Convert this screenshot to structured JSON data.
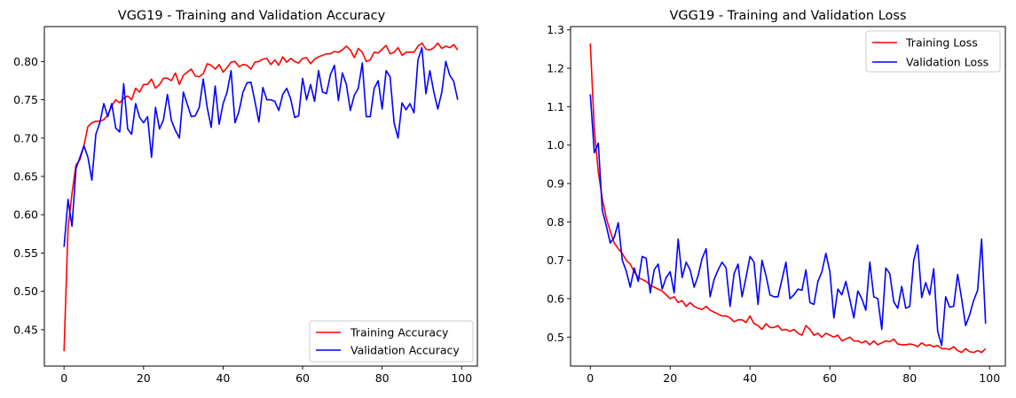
{
  "figure": {
    "background": "#ffffff"
  },
  "chart_data": [
    {
      "type": "line",
      "title": "VGG19 - Training and Validation Accuracy",
      "xlabel": "",
      "ylabel": "",
      "xlim": [
        -4.95,
        103.95
      ],
      "ylim": [
        0.4025,
        0.8455
      ],
      "xticks": [
        0,
        20,
        40,
        60,
        80,
        100
      ],
      "xtick_labels": [
        "0",
        "20",
        "40",
        "60",
        "80",
        "100"
      ],
      "yticks": [
        0.45,
        0.5,
        0.55,
        0.6,
        0.65,
        0.7,
        0.75,
        0.8
      ],
      "ytick_labels": [
        "0.45",
        "0.50",
        "0.55",
        "0.60",
        "0.65",
        "0.70",
        "0.75",
        "0.80"
      ],
      "grid": false,
      "legend_position": "lower-right",
      "series": [
        {
          "name": "Training Accuracy",
          "color": "#ff0000",
          "x": [
            0,
            1,
            2,
            3,
            4,
            5,
            6,
            7,
            8,
            9,
            10,
            11,
            12,
            13,
            14,
            15,
            16,
            17,
            18,
            19,
            20,
            21,
            22,
            23,
            24,
            25,
            26,
            27,
            28,
            29,
            30,
            31,
            32,
            33,
            34,
            35,
            36,
            37,
            38,
            39,
            40,
            41,
            42,
            43,
            44,
            45,
            46,
            47,
            48,
            49,
            50,
            51,
            52,
            53,
            54,
            55,
            56,
            57,
            58,
            59,
            60,
            61,
            62,
            63,
            64,
            65,
            66,
            67,
            68,
            69,
            70,
            71,
            72,
            73,
            74,
            75,
            76,
            77,
            78,
            79,
            80,
            81,
            82,
            83,
            84,
            85,
            86,
            87,
            88,
            89,
            90,
            91,
            92,
            93,
            94,
            95,
            96,
            97,
            98,
            99
          ],
          "values": [
            0.422,
            0.582,
            0.628,
            0.665,
            0.672,
            0.69,
            0.715,
            0.72,
            0.722,
            0.722,
            0.724,
            0.73,
            0.742,
            0.75,
            0.746,
            0.752,
            0.755,
            0.75,
            0.765,
            0.76,
            0.77,
            0.77,
            0.777,
            0.765,
            0.77,
            0.778,
            0.778,
            0.775,
            0.785,
            0.77,
            0.782,
            0.786,
            0.79,
            0.781,
            0.78,
            0.784,
            0.797,
            0.795,
            0.79,
            0.796,
            0.786,
            0.792,
            0.799,
            0.8,
            0.793,
            0.796,
            0.795,
            0.79,
            0.799,
            0.8,
            0.803,
            0.804,
            0.796,
            0.802,
            0.795,
            0.806,
            0.799,
            0.804,
            0.8,
            0.798,
            0.804,
            0.805,
            0.797,
            0.803,
            0.806,
            0.808,
            0.81,
            0.81,
            0.813,
            0.812,
            0.815,
            0.82,
            0.815,
            0.805,
            0.817,
            0.812,
            0.8,
            0.802,
            0.812,
            0.811,
            0.816,
            0.821,
            0.81,
            0.812,
            0.818,
            0.808,
            0.812,
            0.812,
            0.812,
            0.82,
            0.824,
            0.816,
            0.815,
            0.818,
            0.824,
            0.817,
            0.82,
            0.818,
            0.822,
            0.815
          ]
        },
        {
          "name": "Validation Accuracy",
          "color": "#0000ff",
          "x": [
            0,
            1,
            2,
            3,
            4,
            5,
            6,
            7,
            8,
            9,
            10,
            11,
            12,
            13,
            14,
            15,
            16,
            17,
            18,
            19,
            20,
            21,
            22,
            23,
            24,
            25,
            26,
            27,
            28,
            29,
            30,
            31,
            32,
            33,
            34,
            35,
            36,
            37,
            38,
            39,
            40,
            41,
            42,
            43,
            44,
            45,
            46,
            47,
            48,
            49,
            50,
            51,
            52,
            53,
            54,
            55,
            56,
            57,
            58,
            59,
            60,
            61,
            62,
            63,
            64,
            65,
            66,
            67,
            68,
            69,
            70,
            71,
            72,
            73,
            74,
            75,
            76,
            77,
            78,
            79,
            80,
            81,
            82,
            83,
            84,
            85,
            86,
            87,
            88,
            89,
            90,
            91,
            92,
            93,
            94,
            95,
            96,
            97,
            98,
            99
          ],
          "values": [
            0.558,
            0.62,
            0.585,
            0.66,
            0.675,
            0.69,
            0.675,
            0.645,
            0.705,
            0.72,
            0.745,
            0.728,
            0.745,
            0.713,
            0.708,
            0.771,
            0.712,
            0.705,
            0.745,
            0.727,
            0.72,
            0.728,
            0.675,
            0.74,
            0.712,
            0.724,
            0.757,
            0.723,
            0.71,
            0.7,
            0.76,
            0.744,
            0.728,
            0.729,
            0.74,
            0.777,
            0.74,
            0.714,
            0.768,
            0.718,
            0.745,
            0.76,
            0.788,
            0.72,
            0.735,
            0.76,
            0.772,
            0.773,
            0.748,
            0.721,
            0.766,
            0.75,
            0.75,
            0.748,
            0.736,
            0.757,
            0.765,
            0.751,
            0.727,
            0.729,
            0.778,
            0.75,
            0.77,
            0.748,
            0.788,
            0.76,
            0.758,
            0.783,
            0.795,
            0.749,
            0.785,
            0.77,
            0.736,
            0.756,
            0.765,
            0.798,
            0.728,
            0.728,
            0.765,
            0.775,
            0.738,
            0.788,
            0.78,
            0.72,
            0.7,
            0.746,
            0.737,
            0.745,
            0.733,
            0.802,
            0.818,
            0.758,
            0.788,
            0.76,
            0.738,
            0.76,
            0.8,
            0.782,
            0.774,
            0.75
          ]
        }
      ]
    },
    {
      "type": "line",
      "title": "VGG19 - Training and Validation Loss",
      "xlabel": "",
      "ylabel": "",
      "xlim": [
        -4.95,
        103.95
      ],
      "ylim": [
        0.4245,
        1.3085
      ],
      "xticks": [
        0,
        20,
        40,
        60,
        80,
        100
      ],
      "xtick_labels": [
        "0",
        "20",
        "40",
        "60",
        "80",
        "100"
      ],
      "yticks": [
        0.5,
        0.6,
        0.7,
        0.8,
        0.9,
        1.0,
        1.1,
        1.2,
        1.3
      ],
      "ytick_labels": [
        "0.5",
        "0.6",
        "0.7",
        "0.8",
        "0.9",
        "1.0",
        "1.1",
        "1.2",
        "1.3"
      ],
      "grid": false,
      "legend_position": "upper-right",
      "series": [
        {
          "name": "Training Loss",
          "color": "#ff0000",
          "x": [
            0,
            1,
            2,
            3,
            4,
            5,
            6,
            7,
            8,
            9,
            10,
            11,
            12,
            13,
            14,
            15,
            16,
            17,
            18,
            19,
            20,
            21,
            22,
            23,
            24,
            25,
            26,
            27,
            28,
            29,
            30,
            31,
            32,
            33,
            34,
            35,
            36,
            37,
            38,
            39,
            40,
            41,
            42,
            43,
            44,
            45,
            46,
            47,
            48,
            49,
            50,
            51,
            52,
            53,
            54,
            55,
            56,
            57,
            58,
            59,
            60,
            61,
            62,
            63,
            64,
            65,
            66,
            67,
            68,
            69,
            70,
            71,
            72,
            73,
            74,
            75,
            76,
            77,
            78,
            79,
            80,
            81,
            82,
            83,
            84,
            85,
            86,
            87,
            88,
            89,
            90,
            91,
            92,
            93,
            94,
            95,
            96,
            97,
            98,
            99
          ],
          "values": [
            1.265,
            1.04,
            0.93,
            0.86,
            0.81,
            0.775,
            0.745,
            0.73,
            0.718,
            0.7,
            0.69,
            0.67,
            0.655,
            0.65,
            0.645,
            0.635,
            0.63,
            0.625,
            0.62,
            0.61,
            0.6,
            0.605,
            0.59,
            0.595,
            0.58,
            0.59,
            0.58,
            0.575,
            0.572,
            0.58,
            0.57,
            0.565,
            0.56,
            0.555,
            0.555,
            0.55,
            0.54,
            0.545,
            0.545,
            0.538,
            0.555,
            0.535,
            0.53,
            0.52,
            0.535,
            0.525,
            0.525,
            0.53,
            0.518,
            0.52,
            0.515,
            0.52,
            0.51,
            0.505,
            0.53,
            0.52,
            0.505,
            0.51,
            0.5,
            0.51,
            0.505,
            0.5,
            0.505,
            0.49,
            0.495,
            0.5,
            0.49,
            0.49,
            0.485,
            0.49,
            0.48,
            0.49,
            0.48,
            0.485,
            0.49,
            0.488,
            0.495,
            0.482,
            0.48,
            0.48,
            0.482,
            0.48,
            0.475,
            0.485,
            0.478,
            0.48,
            0.475,
            0.478,
            0.47,
            0.47,
            0.468,
            0.475,
            0.465,
            0.46,
            0.47,
            0.462,
            0.46,
            0.465,
            0.46,
            0.47
          ]
        },
        {
          "name": "Validation Loss",
          "color": "#0000ff",
          "x": [
            0,
            1,
            2,
            3,
            4,
            5,
            6,
            7,
            8,
            9,
            10,
            11,
            12,
            13,
            14,
            15,
            16,
            17,
            18,
            19,
            20,
            21,
            22,
            23,
            24,
            25,
            26,
            27,
            28,
            29,
            30,
            31,
            32,
            33,
            34,
            35,
            36,
            37,
            38,
            39,
            40,
            41,
            42,
            43,
            44,
            45,
            46,
            47,
            48,
            49,
            50,
            51,
            52,
            53,
            54,
            55,
            56,
            57,
            58,
            59,
            60,
            61,
            62,
            63,
            64,
            65,
            66,
            67,
            68,
            69,
            70,
            71,
            72,
            73,
            74,
            75,
            76,
            77,
            78,
            79,
            80,
            81,
            82,
            83,
            84,
            85,
            86,
            87,
            88,
            89,
            90,
            91,
            92,
            93,
            94,
            95,
            96,
            97,
            98,
            99
          ],
          "values": [
            1.132,
            0.98,
            1.005,
            0.83,
            0.79,
            0.745,
            0.76,
            0.798,
            0.7,
            0.672,
            0.63,
            0.68,
            0.645,
            0.71,
            0.705,
            0.615,
            0.675,
            0.69,
            0.625,
            0.655,
            0.67,
            0.615,
            0.755,
            0.655,
            0.695,
            0.675,
            0.63,
            0.66,
            0.705,
            0.73,
            0.605,
            0.65,
            0.675,
            0.695,
            0.68,
            0.58,
            0.665,
            0.69,
            0.605,
            0.655,
            0.71,
            0.695,
            0.585,
            0.7,
            0.66,
            0.61,
            0.605,
            0.605,
            0.65,
            0.695,
            0.6,
            0.61,
            0.625,
            0.622,
            0.675,
            0.59,
            0.585,
            0.645,
            0.67,
            0.718,
            0.67,
            0.55,
            0.625,
            0.61,
            0.645,
            0.598,
            0.55,
            0.62,
            0.6,
            0.57,
            0.695,
            0.605,
            0.6,
            0.52,
            0.68,
            0.665,
            0.592,
            0.575,
            0.632,
            0.575,
            0.58,
            0.7,
            0.74,
            0.603,
            0.642,
            0.61,
            0.678,
            0.515,
            0.478,
            0.605,
            0.578,
            0.58,
            0.663,
            0.6,
            0.53,
            0.558,
            0.595,
            0.622,
            0.755,
            0.535
          ]
        }
      ]
    }
  ]
}
